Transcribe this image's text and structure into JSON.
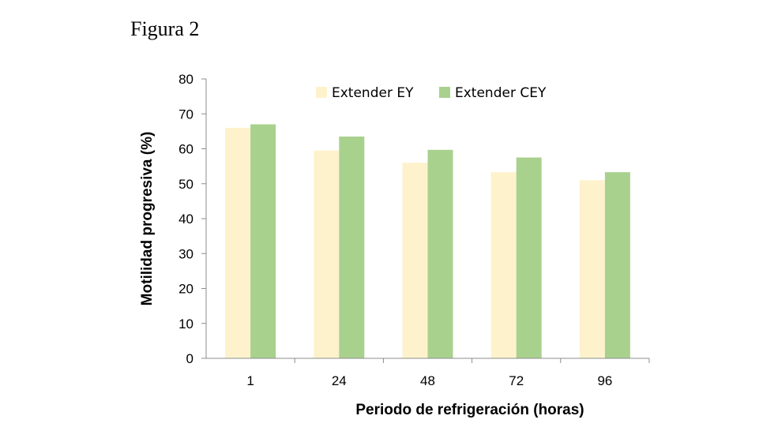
{
  "figure_label": "Figura 2",
  "colors": {
    "series_ey": "#fef2cc",
    "series_cey": "#a9d18e",
    "axis": "#8c8c8c"
  },
  "chart_data": {
    "type": "bar",
    "categories": [
      "1",
      "24",
      "48",
      "72",
      "96"
    ],
    "series": [
      {
        "name": "Extender EY",
        "values": [
          66,
          59.5,
          56,
          53.3,
          51
        ]
      },
      {
        "name": "Extender CEY",
        "values": [
          67,
          63.5,
          59.7,
          57.5,
          53.3
        ]
      }
    ],
    "xlabel": "Periodo de refrigeración (horas)",
    "ylabel": "Motilidad progresiva (%)",
    "ylim": [
      0,
      80
    ],
    "yticks": [
      0,
      10,
      20,
      30,
      40,
      50,
      60,
      70,
      80
    ],
    "grid": false,
    "legend_position": "top"
  }
}
